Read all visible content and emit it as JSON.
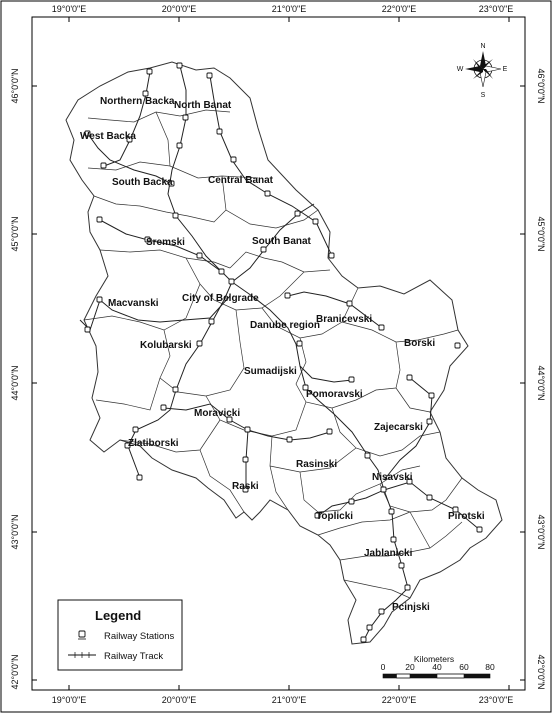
{
  "longitude_ticks": [
    "19°0'0\"E",
    "20°0'0\"E",
    "21°0'0\"E",
    "22°0'0\"E",
    "23°0'0\"E"
  ],
  "latitude_ticks": [
    "46°0'0\"N",
    "45°0'0\"N",
    "44°0'0\"N",
    "43°0'0\"N",
    "42°0'0\"N"
  ],
  "regions": [
    "Northern Backa",
    "North Banat",
    "West Backa",
    "South Backa",
    "Central Banat",
    "Sremski",
    "South Banat",
    "Macvanski",
    "City of Belgrade",
    "Branicevski",
    "Danube region",
    "Kolubarski",
    "Borski",
    "Sumadijski",
    "Pomoravski",
    "Moravicki",
    "Zajecarski",
    "Zlatiborski",
    "Rasinski",
    "Raski",
    "Nisavski",
    "Toplicki",
    "Pirotski",
    "Jablanicki",
    "Pcinjski"
  ],
  "legend": {
    "title": "Legend",
    "stations_label": "Railway Stations",
    "track_label": "Railway Track"
  },
  "scale_bar": {
    "unit": "Kilometers",
    "labels": [
      "0",
      "20",
      "40",
      "60",
      "80"
    ]
  },
  "compass": {
    "n": "N",
    "s": "S",
    "e": "E",
    "w": "W"
  },
  "colors": {
    "boundary": "#333333",
    "track": "#222222",
    "frame": "#000000",
    "background": "#ffffff"
  }
}
